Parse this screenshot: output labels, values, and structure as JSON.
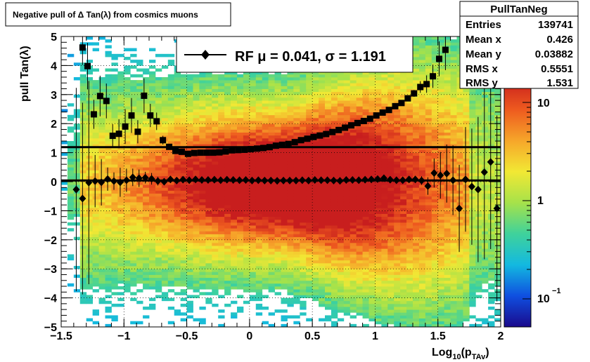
{
  "chart_data": {
    "type": "heatmap",
    "title": "Negative pull of Δ Tan(λ) from cosmics muons",
    "xlabel": "Log10(pTAv)",
    "xlabel_main": "Log",
    "xlabel_sub1": "10",
    "xlabel_mid": "(p",
    "xlabel_sub2": "TAv",
    "xlabel_end": ")",
    "ylabel": "pull Tan(λ)",
    "xlim": [
      -1.5,
      2.0
    ],
    "ylim": [
      -5,
      5
    ],
    "x_ticks": [
      -1.5,
      -1,
      -0.5,
      0,
      0.5,
      1,
      1.5,
      2
    ],
    "x_tick_labels": [
      "−1.5",
      "−1",
      "−0.5",
      "0",
      "0.5",
      "1",
      "1.5",
      "2"
    ],
    "y_ticks": [
      -5,
      -4,
      -3,
      -2,
      -1,
      0,
      1,
      2,
      3,
      4,
      5
    ],
    "y_tick_labels": [
      "−5",
      "−4",
      "−3",
      "−2",
      "−1",
      "0",
      "1",
      "2",
      "3",
      "4",
      "5"
    ],
    "grid": true,
    "colorbar": {
      "scale": "log",
      "tick_labels": [
        "10",
        "1",
        "10"
      ],
      "tick_exponents": [
        "",
        "",
        "−1"
      ],
      "colors": [
        "#1a0a8c",
        "#0f4fe0",
        "#13b9e0",
        "#3fd29b",
        "#a6e24a",
        "#f2e834",
        "#f6a62a",
        "#ee5a1f",
        "#c81e1e"
      ]
    },
    "stats_box": {
      "title": "PullTanNeg",
      "rows": [
        {
          "label": "Entries",
          "value": "139741"
        },
        {
          "label": "Mean x",
          "value": "0.426"
        },
        {
          "label": "Mean y",
          "value": "0.03882"
        },
        {
          "label": "RMS x",
          "value": "0.5551"
        },
        {
          "label": "RMS y",
          "value": "1.531"
        }
      ]
    },
    "legend": {
      "placement": "top-center",
      "label": "RF μ =  0.041, σ =   1.191"
    },
    "fit_lines": [
      {
        "name": "sigma-line",
        "y": 1.191
      },
      {
        "name": "mu-line",
        "y": 0.041
      }
    ],
    "series": [
      {
        "name": "sigma",
        "marker": "square",
        "x": [
          -1.33,
          -1.29,
          -1.24,
          -1.19,
          -1.14,
          -1.09,
          -1.04,
          -0.99,
          -0.94,
          -0.89,
          -0.84,
          -0.79,
          -0.74,
          -0.69,
          -0.64,
          -0.59,
          -0.54,
          -0.49,
          -0.44,
          -0.39,
          -0.34,
          -0.29,
          -0.24,
          -0.19,
          -0.14,
          -0.09,
          -0.04,
          0.01,
          0.06,
          0.11,
          0.16,
          0.21,
          0.26,
          0.31,
          0.36,
          0.41,
          0.46,
          0.51,
          0.56,
          0.61,
          0.66,
          0.71,
          0.76,
          0.81,
          0.86,
          0.91,
          0.96,
          1.01,
          1.06,
          1.11,
          1.16,
          1.21,
          1.26,
          1.31,
          1.36,
          1.41,
          1.46,
          1.51,
          1.56
        ],
        "y": [
          4.62,
          3.98,
          2.32,
          2.95,
          2.78,
          1.58,
          1.65,
          1.9,
          2.28,
          1.72,
          2.96,
          2.28,
          2.08,
          1.43,
          1.2,
          1.06,
          1.03,
          0.96,
          0.99,
          1.0,
          1.0,
          1.0,
          1.01,
          1.04,
          1.08,
          1.09,
          1.1,
          1.12,
          1.14,
          1.16,
          1.19,
          1.24,
          1.27,
          1.3,
          1.36,
          1.43,
          1.48,
          1.54,
          1.59,
          1.64,
          1.71,
          1.78,
          1.86,
          1.94,
          2.02,
          2.09,
          2.17,
          2.28,
          2.38,
          2.47,
          2.6,
          2.71,
          2.87,
          3.04,
          3.26,
          3.36,
          3.63,
          4.23,
          4.54
        ],
        "err": [
          0.6,
          0.8,
          0.5,
          0.7,
          0.6,
          0.4,
          0.5,
          0.6,
          0.6,
          0.4,
          0.6,
          0.4,
          0.3,
          0.15,
          0.05,
          0.03,
          0.02,
          0.01,
          0.01,
          0.01,
          0.01,
          0.01,
          0.01,
          0.01,
          0.01,
          0.01,
          0.01,
          0.01,
          0.01,
          0.01,
          0.01,
          0.01,
          0.01,
          0.01,
          0.01,
          0.01,
          0.01,
          0.01,
          0.01,
          0.01,
          0.01,
          0.01,
          0.01,
          0.01,
          0.01,
          0.01,
          0.01,
          0.02,
          0.02,
          0.03,
          0.04,
          0.05,
          0.08,
          0.12,
          0.2,
          0.3,
          0.4,
          0.6,
          0.7
        ]
      },
      {
        "name": "mu",
        "marker": "diamond",
        "x": [
          -1.38,
          -1.33,
          -1.28,
          -1.23,
          -1.18,
          -1.13,
          -1.08,
          -1.03,
          -0.98,
          -0.93,
          -0.88,
          -0.83,
          -0.78,
          -0.73,
          -0.68,
          -0.63,
          -0.58,
          -0.53,
          -0.48,
          -0.43,
          -0.38,
          -0.33,
          -0.28,
          -0.23,
          -0.18,
          -0.13,
          -0.08,
          -0.03,
          0.02,
          0.07,
          0.12,
          0.17,
          0.22,
          0.27,
          0.32,
          0.37,
          0.42,
          0.47,
          0.52,
          0.57,
          0.62,
          0.67,
          0.72,
          0.77,
          0.82,
          0.87,
          0.92,
          0.97,
          1.02,
          1.07,
          1.12,
          1.17,
          1.22,
          1.27,
          1.32,
          1.37,
          1.42,
          1.47,
          1.52,
          1.57,
          1.62,
          1.67,
          1.72,
          1.77,
          1.82,
          1.87,
          1.92,
          1.97
        ],
        "y": [
          -0.27,
          -0.58,
          -0.03,
          0.02,
          -0.02,
          0.09,
          0.02,
          -0.02,
          0.05,
          0.15,
          0.12,
          0.14,
          0.1,
          0.02,
          0.0,
          0.08,
          0.04,
          0.07,
          0.05,
          0.08,
          0.06,
          0.06,
          0.07,
          0.05,
          0.07,
          0.06,
          0.05,
          0.06,
          0.04,
          0.05,
          0.04,
          0.04,
          0.03,
          0.04,
          0.04,
          0.04,
          0.05,
          0.04,
          0.06,
          0.05,
          0.05,
          0.04,
          0.03,
          0.06,
          0.06,
          0.05,
          0.07,
          0.08,
          0.09,
          0.12,
          0.07,
          0.05,
          0.05,
          0.08,
          0.08,
          0.04,
          -0.15,
          0.3,
          0.22,
          0.28,
          0.05,
          -0.92,
          0.08,
          -0.17,
          -0.27,
          0.33,
          0.68,
          -0.92
        ],
        "err": [
          3.5,
          3.3,
          3.5,
          0.9,
          0.8,
          0.4,
          0.3,
          0.5,
          0.4,
          0.3,
          0.3,
          0.2,
          0.2,
          0.15,
          0.1,
          0.05,
          0.03,
          0.02,
          0.02,
          0.02,
          0.02,
          0.02,
          0.02,
          0.02,
          0.02,
          0.02,
          0.02,
          0.02,
          0.02,
          0.02,
          0.02,
          0.02,
          0.02,
          0.02,
          0.02,
          0.02,
          0.02,
          0.02,
          0.02,
          0.02,
          0.02,
          0.02,
          0.02,
          0.02,
          0.02,
          0.02,
          0.02,
          0.02,
          0.02,
          0.03,
          0.04,
          0.05,
          0.06,
          0.08,
          0.1,
          0.15,
          0.3,
          0.5,
          0.8,
          1.0,
          1.2,
          1.5,
          1.8,
          2.0,
          2.5,
          3.0,
          3.0,
          3.2
        ]
      }
    ]
  }
}
